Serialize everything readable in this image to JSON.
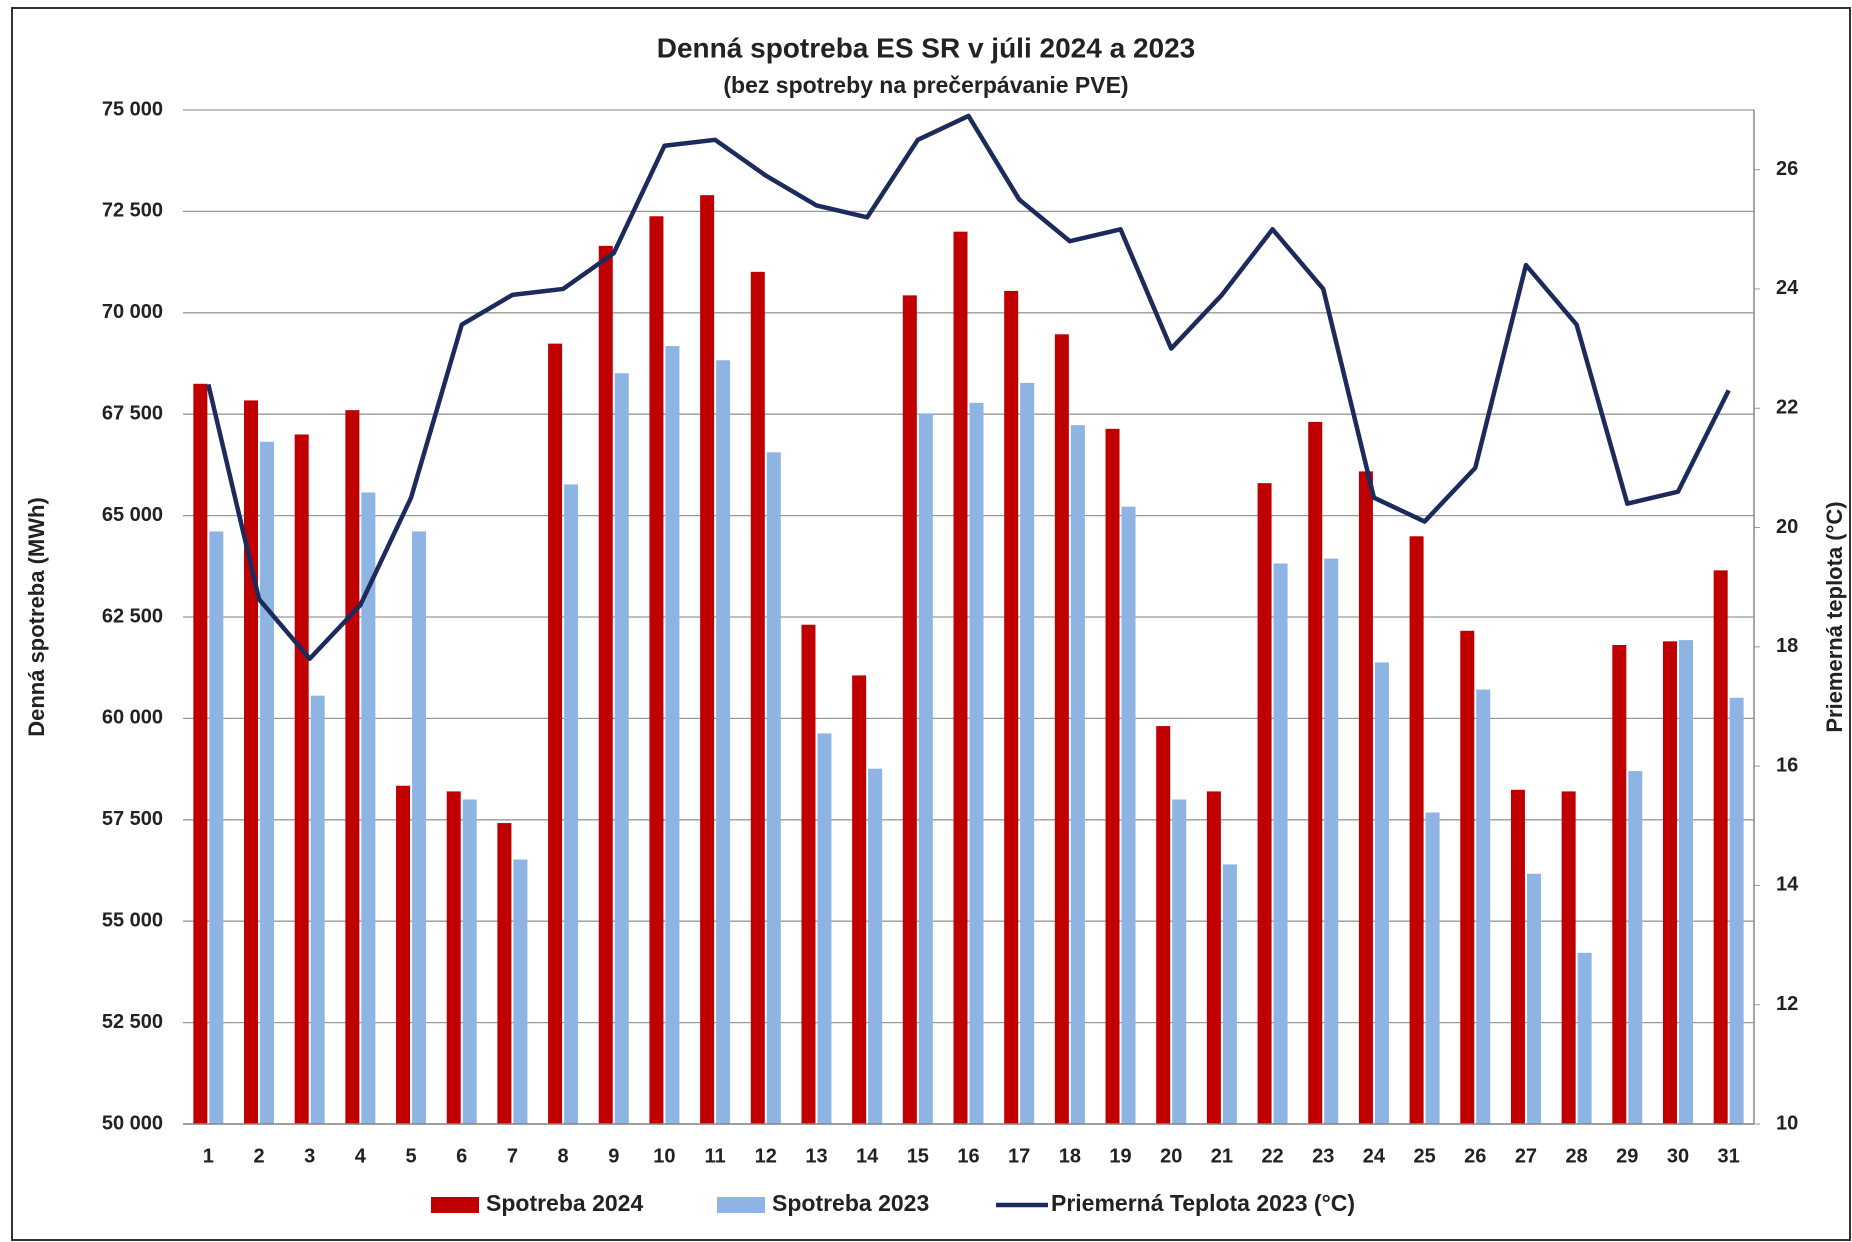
{
  "chart_data": {
    "type": "bar-line",
    "title": "Denná spotreba ES SR v júli 2024 a 2023",
    "subtitle": "(bez spotreby na prečerpávanie PVE)",
    "y_label": "Denná spotreba (MWh)",
    "y2_label": "Priemerná teplota (°C)",
    "categories": [
      "1",
      "2",
      "3",
      "4",
      "5",
      "6",
      "7",
      "8",
      "9",
      "10",
      "11",
      "12",
      "13",
      "14",
      "15",
      "16",
      "17",
      "18",
      "19",
      "20",
      "21",
      "22",
      "23",
      "24",
      "25",
      "26",
      "27",
      "28",
      "29",
      "30",
      "31"
    ],
    "series": [
      {
        "name": "Spotreba 2024",
        "type": "bar",
        "color": "#c00000",
        "values": [
          68250,
          67840,
          67000,
          67600,
          58340,
          58200,
          57420,
          69240,
          71650,
          72380,
          72900,
          71010,
          62310,
          61060,
          70430,
          72000,
          70540,
          69470,
          67140,
          59810,
          58200,
          65800,
          67310,
          66090,
          64490,
          62160,
          58240,
          58200,
          61810,
          61900,
          63650
        ]
      },
      {
        "name": "Spotreba 2023",
        "type": "bar",
        "color": "#8db4e2",
        "values": [
          64610,
          66820,
          60560,
          65570,
          64610,
          58000,
          56520,
          65770,
          68510,
          69180,
          68830,
          66560,
          59630,
          58760,
          67520,
          67780,
          68270,
          67230,
          65220,
          58000,
          56400,
          63820,
          63940,
          61380,
          57680,
          60710,
          56170,
          54220,
          58700,
          61930,
          60510
        ]
      },
      {
        "name": "Priemerná Teplota 2023 (°C)",
        "type": "line",
        "axis": "y2",
        "color": "#1c2a5c",
        "values": [
          22.4,
          18.8,
          17.8,
          18.7,
          20.5,
          23.4,
          23.9,
          24.0,
          24.6,
          26.4,
          26.5,
          25.9,
          25.4,
          25.2,
          26.5,
          26.9,
          25.5,
          24.8,
          25.0,
          23.0,
          23.9,
          25.0,
          24.0,
          20.5,
          20.1,
          21.0,
          24.4,
          23.4,
          20.4,
          20.6,
          22.3
        ]
      }
    ],
    "ylim": [
      50000,
      75000
    ],
    "yticks": [
      {
        "value": 50000,
        "label": "50 000"
      },
      {
        "value": 52500,
        "label": "52 500"
      },
      {
        "value": 55000,
        "label": "55 000"
      },
      {
        "value": 57500,
        "label": "57 500"
      },
      {
        "value": 60000,
        "label": "60 000"
      },
      {
        "value": 62500,
        "label": "62 500"
      },
      {
        "value": 65000,
        "label": "65 000"
      },
      {
        "value": 67500,
        "label": "67 500"
      },
      {
        "value": 70000,
        "label": "70 000"
      },
      {
        "value": 72500,
        "label": "72 500"
      },
      {
        "value": 75000,
        "label": "75 000"
      }
    ],
    "y2lim": [
      10,
      27
    ],
    "y2ticks": [
      10,
      12,
      14,
      16,
      18,
      20,
      22,
      24,
      26
    ],
    "grid": true,
    "legend": "bottom"
  }
}
